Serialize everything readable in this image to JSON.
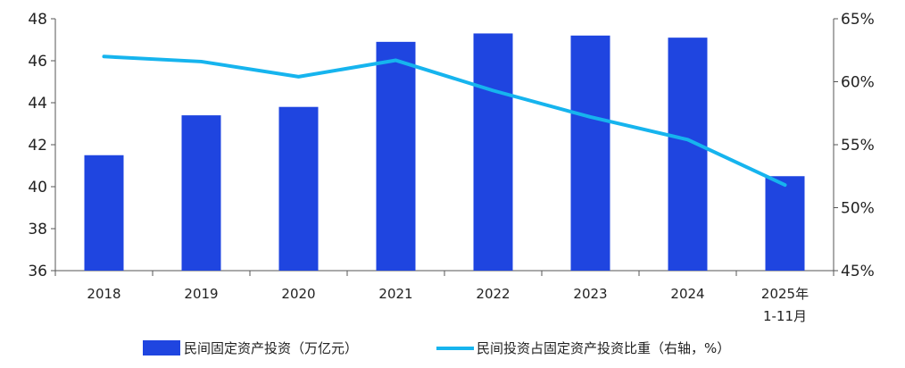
{
  "chart_data": {
    "type": "bar+line",
    "categories": [
      [
        "2018"
      ],
      [
        "2019"
      ],
      [
        "2020"
      ],
      [
        "2021"
      ],
      [
        "2022"
      ],
      [
        "2023"
      ],
      [
        "2024"
      ],
      [
        "2025年",
        "1-11月"
      ]
    ],
    "series": [
      {
        "name": "民间固定资产投资（万亿元）",
        "type": "bar",
        "axis": "left",
        "color": "#1f45e0",
        "values": [
          41.5,
          43.4,
          43.8,
          46.9,
          47.3,
          47.2,
          47.1,
          40.5
        ]
      },
      {
        "name": "民间投资占固定资产投资比重（右轴，%）",
        "type": "line",
        "axis": "right",
        "color": "#16b4ee",
        "values": [
          62.0,
          61.6,
          60.4,
          61.7,
          59.3,
          57.2,
          55.4,
          51.8
        ]
      }
    ],
    "y_left": {
      "min": 36,
      "max": 48,
      "ticks": [
        "36",
        "38",
        "40",
        "42",
        "44",
        "46",
        "48"
      ]
    },
    "y_right": {
      "min": 45,
      "max": 65,
      "ticks": [
        "45%",
        "50%",
        "55%",
        "60%",
        "65%"
      ]
    },
    "grid": false,
    "legend_position": "bottom"
  }
}
